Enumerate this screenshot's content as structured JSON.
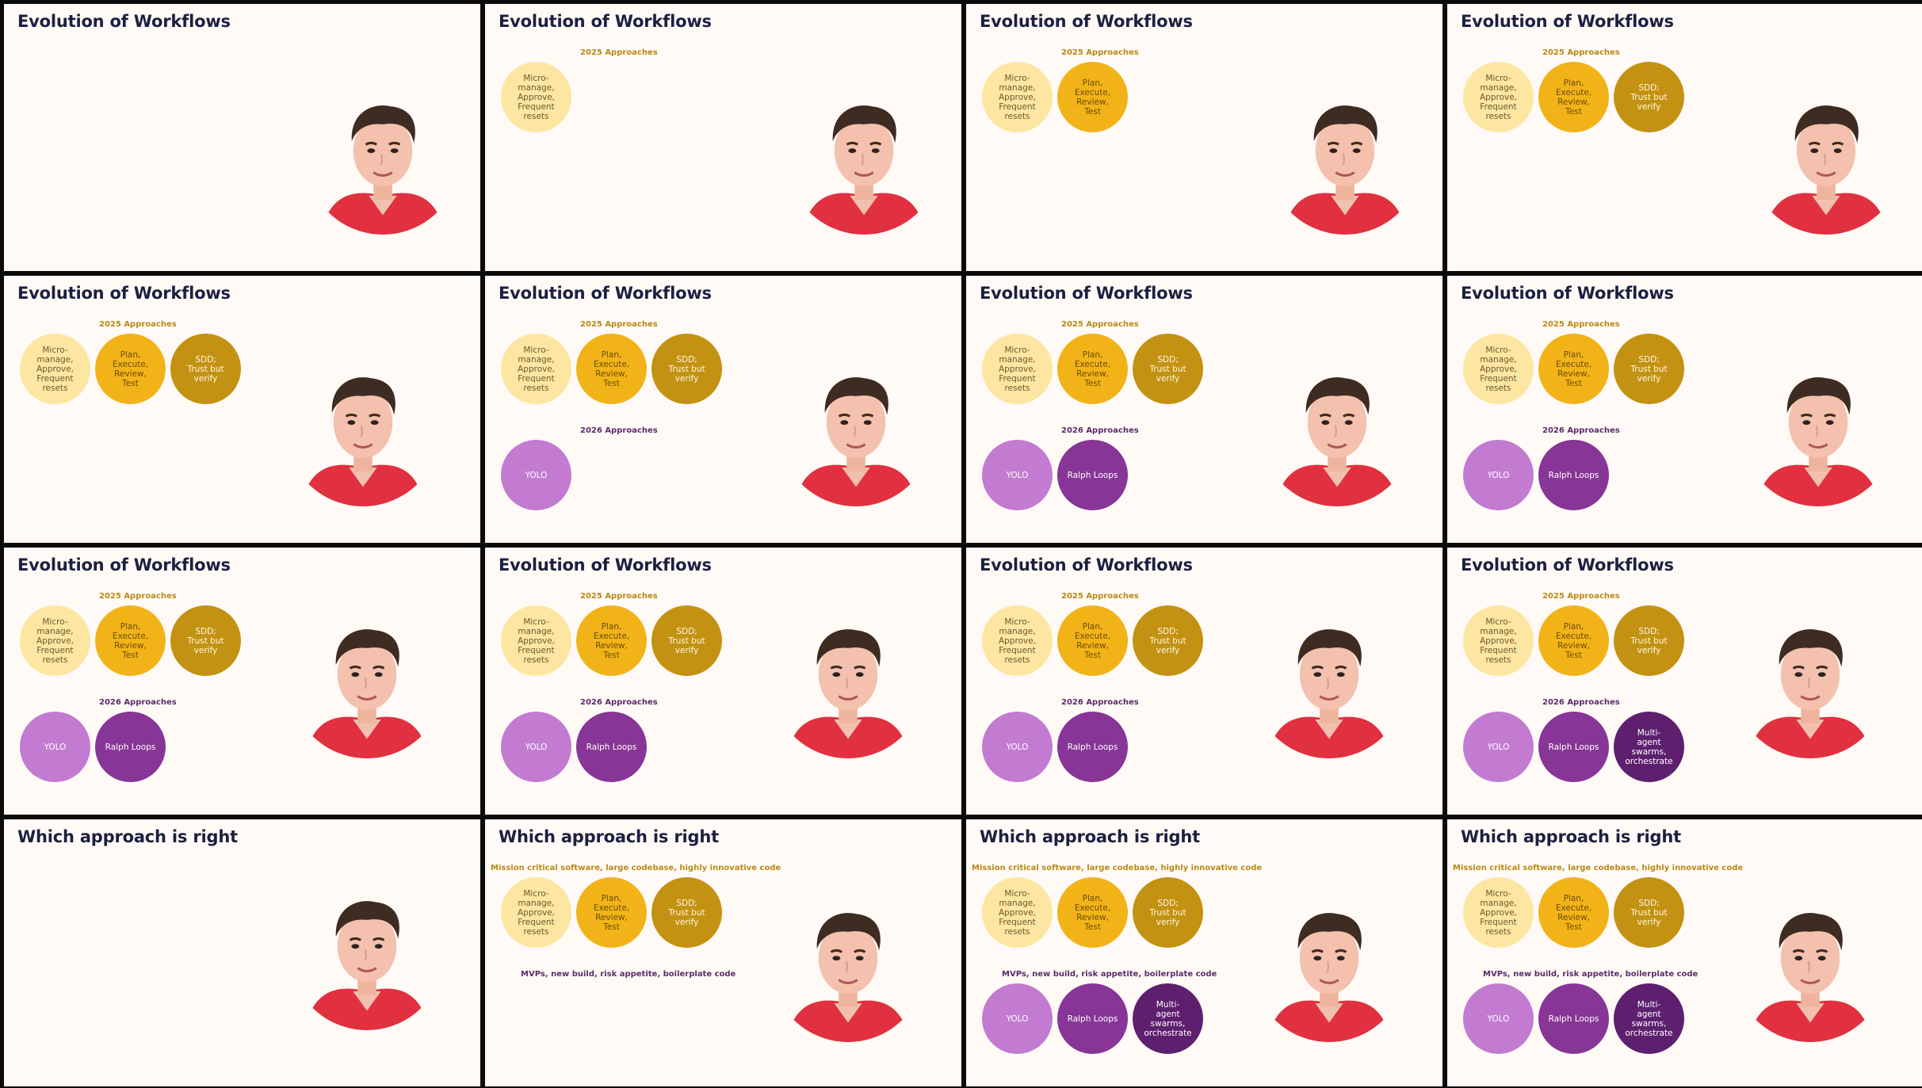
{
  "colors": {
    "background": "#fffaf6",
    "title": "#1c2040",
    "label_2025": "#b88a16",
    "label_2026": "#5c2a6e",
    "bubble_micro": "#fde6a1",
    "bubble_plan": "#f2b319",
    "bubble_sdd": "#c49213",
    "bubble_yolo": "#c27bd1",
    "bubble_ralph": "#873697",
    "bubble_multi": "#5e1f6e"
  },
  "bubbles": {
    "micro": "Micro-\nmanage,\nApprove,\nFrequent\nresets",
    "plan": "Plan,\nExecute,\nReview,\nTest",
    "sdd": "SDD;\nTrust but\nverify",
    "yolo": "YOLO",
    "ralph": "Ralph Loops",
    "multi": "Multi-\nagent\nswarms,\norchestrate"
  },
  "frames": [
    {
      "title": "Evolution of Workflows",
      "top_label": "",
      "bottom_label": "",
      "top_count": 0,
      "bottom_items": []
    },
    {
      "title": "Evolution of Workflows",
      "top_label": "2025 Approaches",
      "bottom_label": "",
      "top_count": 1,
      "bottom_items": []
    },
    {
      "title": "Evolution of Workflows",
      "top_label": "2025 Approaches",
      "bottom_label": "",
      "top_count": 2,
      "bottom_items": []
    },
    {
      "title": "Evolution of Workflows",
      "top_label": "2025 Approaches",
      "bottom_label": "",
      "top_count": 3,
      "bottom_items": []
    },
    {
      "title": "Evolution of Workflows",
      "top_label": "2025 Approaches",
      "bottom_label": "",
      "top_count": 3,
      "bottom_items": []
    },
    {
      "title": "Evolution of Workflows",
      "top_label": "2025 Approaches",
      "bottom_label": "2026 Approaches",
      "top_count": 3,
      "bottom_items": [
        "yolo"
      ]
    },
    {
      "title": "Evolution of Workflows",
      "top_label": "2025 Approaches",
      "bottom_label": "2026 Approaches",
      "top_count": 3,
      "bottom_items": [
        "yolo",
        "ralph"
      ]
    },
    {
      "title": "Evolution of Workflows",
      "top_label": "2025 Approaches",
      "bottom_label": "2026 Approaches",
      "top_count": 3,
      "bottom_items": [
        "yolo",
        "ralph"
      ]
    },
    {
      "title": "Evolution of Workflows",
      "top_label": "2025 Approaches",
      "bottom_label": "2026 Approaches",
      "top_count": 3,
      "bottom_items": [
        "yolo",
        "ralph"
      ]
    },
    {
      "title": "Evolution of Workflows",
      "top_label": "2025 Approaches",
      "bottom_label": "2026 Approaches",
      "top_count": 3,
      "bottom_items": [
        "yolo",
        "ralph"
      ]
    },
    {
      "title": "Evolution of Workflows",
      "top_label": "2025 Approaches",
      "bottom_label": "2026 Approaches",
      "top_count": 3,
      "bottom_items": [
        "yolo",
        "ralph"
      ]
    },
    {
      "title": "Evolution of Workflows",
      "top_label": "2025 Approaches",
      "bottom_label": "2026 Approaches",
      "top_count": 3,
      "bottom_items": [
        "yolo",
        "ralph",
        "multi"
      ]
    },
    {
      "title": "Which approach is right",
      "top_label": "",
      "bottom_label": "",
      "top_count": 0,
      "bottom_items": []
    },
    {
      "title": "Which approach is right",
      "top_label": "Mission critical software, large codebase, highly innovative code",
      "bottom_label": "MVPs, new build, risk appetite, boilerplate code",
      "top_count": 3,
      "bottom_items": []
    },
    {
      "title": "Which approach is right",
      "top_label": "Mission critical software, large codebase, highly innovative code",
      "bottom_label": "MVPs, new build, risk appetite, boilerplate code",
      "top_count": 3,
      "bottom_items": [
        "yolo",
        "ralph",
        "multi"
      ]
    },
    {
      "title": "Which approach is right",
      "top_label": "Mission critical software, large codebase, highly innovative code",
      "bottom_label": "MVPs, new build, risk appetite, boilerplate code",
      "top_count": 3,
      "bottom_items": [
        "yolo",
        "ralph",
        "multi"
      ]
    }
  ]
}
